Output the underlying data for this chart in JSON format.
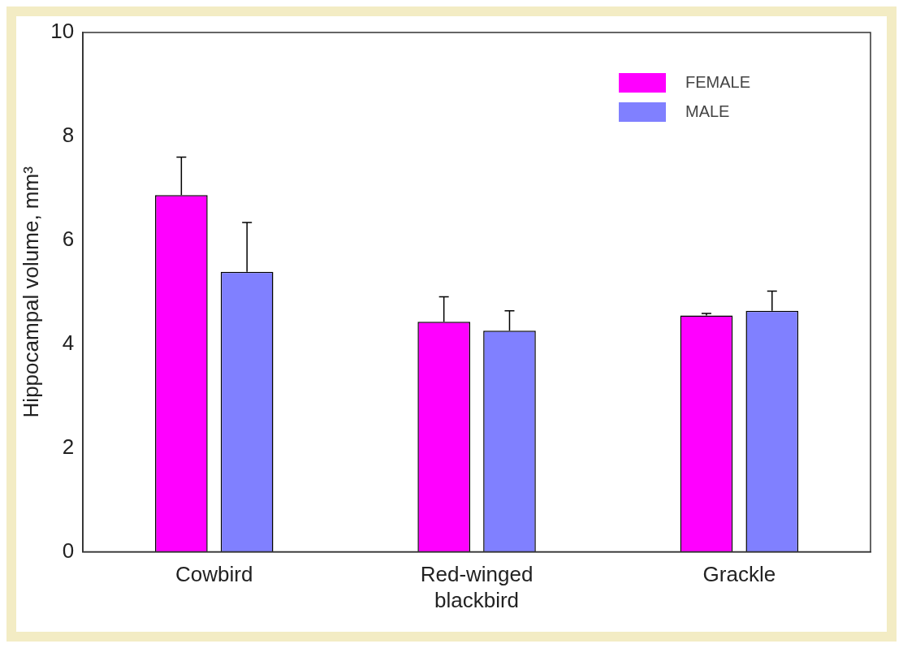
{
  "chart_data": {
    "type": "bar",
    "ylabel": "Hippocampal volume, mm³",
    "categories": [
      "Cowbird",
      "Red-winged blackbird",
      "Grackle"
    ],
    "series": [
      {
        "name": "FEMALE",
        "color": "#ff00ff",
        "values": [
          6.87,
          4.43,
          4.55
        ],
        "errors": [
          0.73,
          0.48,
          0.04
        ]
      },
      {
        "name": "MALE",
        "color": "#8080ff",
        "values": [
          5.39,
          4.26,
          4.64
        ],
        "errors": [
          0.95,
          0.38,
          0.38
        ]
      }
    ],
    "ylim": [
      0,
      10
    ],
    "yticks": [
      0,
      2,
      4,
      6,
      8,
      10
    ],
    "grid": false,
    "legend": "top right"
  }
}
